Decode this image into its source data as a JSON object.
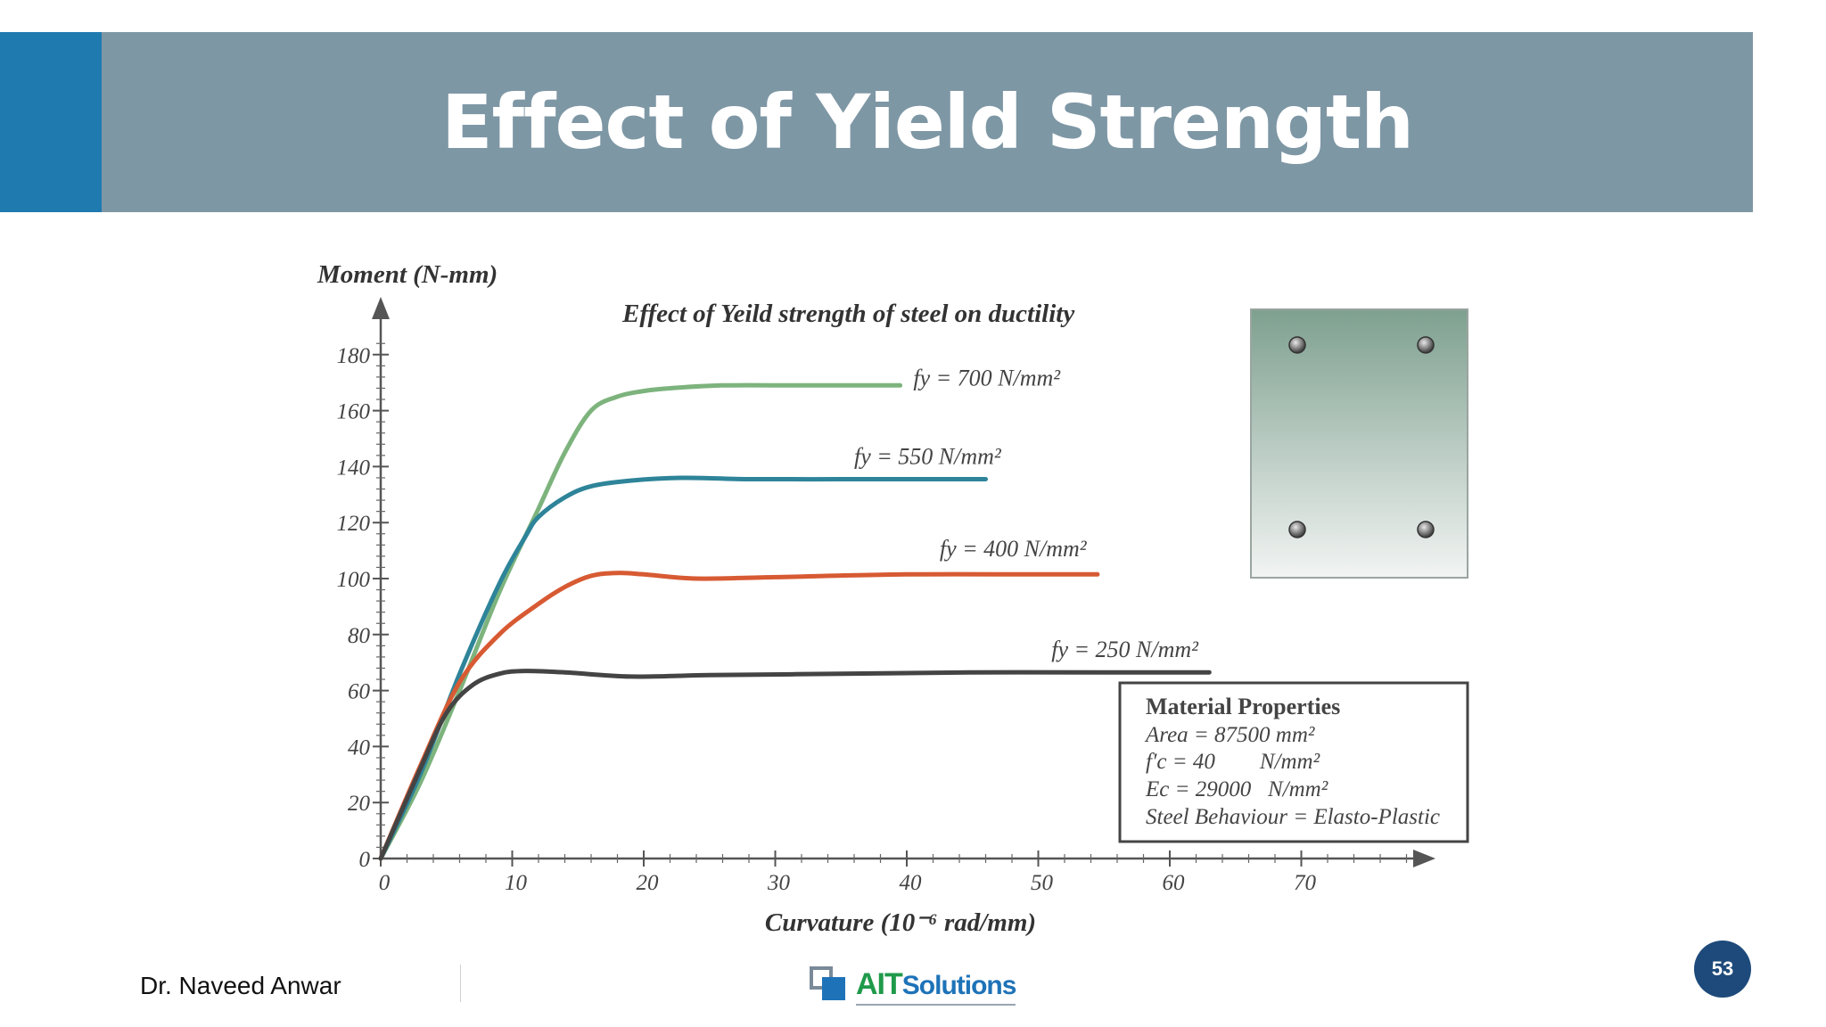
{
  "slide": {
    "title": "Effect of Yield Strength",
    "author": "Dr. Naveed Anwar",
    "logo": {
      "text_a": "AIT",
      "text_b": "Solutions"
    },
    "page_number": "53",
    "colors": {
      "title_bar": "#7e97a5",
      "accent": "#1f7ab0",
      "badge": "#1d4a7a"
    }
  },
  "chart_data": {
    "type": "line",
    "title": "Effect of Yeild strength of steel on ductility",
    "ylabel": "Moment (N-mm)",
    "xlabel": "Curvature (10⁻⁶ rad/mm)",
    "xlim": [
      0,
      80
    ],
    "ylim": [
      0,
      190
    ],
    "x_ticks": [
      0,
      10,
      20,
      30,
      40,
      50,
      60,
      70
    ],
    "y_ticks": [
      0,
      20,
      40,
      60,
      80,
      100,
      120,
      140,
      160,
      180
    ],
    "grid": false,
    "series": [
      {
        "name": "fy = 700 N/mm²",
        "color": "#7db37d",
        "points": [
          [
            0,
            0
          ],
          [
            3,
            27
          ],
          [
            6,
            60
          ],
          [
            9,
            95
          ],
          [
            12,
            125
          ],
          [
            14,
            145
          ],
          [
            16,
            160
          ],
          [
            18,
            165
          ],
          [
            20,
            167
          ],
          [
            22,
            168
          ],
          [
            26,
            169
          ],
          [
            32,
            169
          ],
          [
            38,
            169
          ],
          [
            39.5,
            169
          ]
        ]
      },
      {
        "name": "fy = 550 N/mm²",
        "color": "#2e8499",
        "points": [
          [
            0,
            0
          ],
          [
            3,
            30
          ],
          [
            6,
            66
          ],
          [
            9,
            98
          ],
          [
            11,
            115
          ],
          [
            12,
            122
          ],
          [
            14,
            129
          ],
          [
            16,
            133
          ],
          [
            19,
            135
          ],
          [
            23,
            136
          ],
          [
            28,
            135.5
          ],
          [
            35,
            135.5
          ],
          [
            42,
            135.5
          ],
          [
            46,
            135.5
          ]
        ]
      },
      {
        "name": "fy = 400 N/mm²",
        "color": "#d75a33",
        "points": [
          [
            0,
            0
          ],
          [
            3,
            33
          ],
          [
            6,
            63
          ],
          [
            9,
            80
          ],
          [
            12,
            91
          ],
          [
            14,
            97
          ],
          [
            16,
            101
          ],
          [
            18,
            102
          ],
          [
            20,
            101.5
          ],
          [
            24,
            100
          ],
          [
            30,
            100.5
          ],
          [
            40,
            101.5
          ],
          [
            50,
            101.5
          ],
          [
            54.5,
            101.5
          ]
        ]
      },
      {
        "name": "fy = 250 N/mm²",
        "color": "#444444",
        "points": [
          [
            0,
            0
          ],
          [
            3,
            32
          ],
          [
            5,
            52
          ],
          [
            7,
            62
          ],
          [
            9,
            66
          ],
          [
            11,
            67
          ],
          [
            14,
            66.5
          ],
          [
            19,
            65
          ],
          [
            25,
            65.5
          ],
          [
            35,
            66
          ],
          [
            45,
            66.5
          ],
          [
            55,
            66.5
          ],
          [
            63,
            66.5
          ]
        ]
      }
    ],
    "line_labels": [
      {
        "text": "fy = 700 N/mm²",
        "at": [
          40.5,
          169
        ]
      },
      {
        "text": "fy = 550 N/mm²",
        "at": [
          36,
          141
        ]
      },
      {
        "text": "fy = 400 N/mm²",
        "at": [
          42.5,
          108
        ]
      },
      {
        "text": "fy = 250 N/mm²",
        "at": [
          51,
          72
        ]
      }
    ],
    "section_inset": {
      "rebars": 4,
      "fill_top": "#7ea08f",
      "fill_bottom": "#f2f4f3"
    },
    "material_properties": {
      "heading": "Material Properties",
      "area": "Area = 87500 mm²",
      "fc": "f′c = 40        N/mm²",
      "ec": "Ec = 29000   N/mm²",
      "steel": "Steel Behaviour = Elasto-Plastic"
    }
  }
}
